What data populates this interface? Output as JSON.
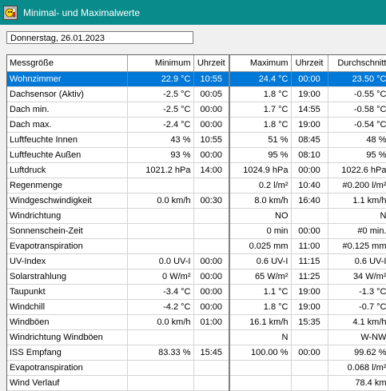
{
  "window": {
    "title": "Minimal- und Maximalwerte",
    "icon": "sun-thermometer-icon"
  },
  "date_field": {
    "value": "Donnerstag, 26.01.2023"
  },
  "table": {
    "headers": [
      "Messgröße",
      "Minimum",
      "Uhrzeit",
      "Maximum",
      "Uhrzeit",
      "Durchschnitt"
    ],
    "selected_row": 0,
    "rows": [
      [
        "Wohnzimmer",
        "22.9 °C",
        "10:55",
        "24.4 °C",
        "00:00",
        "23.50 °C"
      ],
      [
        "Dachsensor (Aktiv)",
        "-2.5 °C",
        "00:05",
        "1.8 °C",
        "19:00",
        "-0.55 °C"
      ],
      [
        "Dach min.",
        "-2.5 °C",
        "00:00",
        "1.7 °C",
        "14:55",
        "-0.58 °C"
      ],
      [
        "Dach max.",
        "-2.4 °C",
        "00:00",
        "1.8 °C",
        "19:00",
        "-0.54 °C"
      ],
      [
        "Luftfeuchte Innen",
        "43 %",
        "10:55",
        "51 %",
        "08:45",
        "48 %"
      ],
      [
        "Luftfeuchte Außen",
        "93 %",
        "00:00",
        "95 %",
        "08:10",
        "95 %"
      ],
      [
        "Luftdruck",
        "1021.2 hPa",
        "14:00",
        "1024.9 hPa",
        "00:00",
        "1022.6 hPa"
      ],
      [
        "Regenmenge",
        "",
        "",
        "0.2 l/m²",
        "10:40",
        "#0.200 l/m²"
      ],
      [
        "Windgeschwindigkeit",
        "0.0 km/h",
        "00:30",
        "8.0 km/h",
        "16:40",
        "1.1 km/h"
      ],
      [
        "Windrichtung",
        "",
        "",
        "NO",
        "",
        "N"
      ],
      [
        "Sonnenschein-Zeit",
        "",
        "",
        "0 min",
        "00:00",
        "#0 min."
      ],
      [
        "Evapotranspiration",
        "",
        "",
        "0.025 mm",
        "11:00",
        "#0.125 mm"
      ],
      [
        "UV-Index",
        "0.0 UV-I",
        "00:00",
        "0.6 UV-I",
        "11:15",
        "0.6 UV-I"
      ],
      [
        "Solarstrahlung",
        "0 W/m²",
        "00:00",
        "65 W/m²",
        "11:25",
        "34 W/m²"
      ],
      [
        "Taupunkt",
        "-3.4 °C",
        "00:00",
        "1.1 °C",
        "19:00",
        "-1.3 °C"
      ],
      [
        "Windchill",
        "-4.2 °C",
        "00:00",
        "1.8 °C",
        "19:00",
        "-0.7 °C"
      ],
      [
        "Windböen",
        "0.0 km/h",
        "01:00",
        "16.1 km/h",
        "15:35",
        "4.1 km/h"
      ],
      [
        "Windrichtung Windböen",
        "",
        "",
        "N",
        "",
        "W-NW"
      ],
      [
        "ISS Empfang",
        "83.33 %",
        "15:45",
        "100.00 %",
        "00:00",
        "99.62 %"
      ],
      [
        "Evapotranspiration",
        "",
        "",
        "",
        "",
        "0.068 l/m²"
      ],
      [
        "Wind Verlauf",
        "",
        "",
        "",
        "",
        "78.4 km"
      ]
    ]
  },
  "colors": {
    "titlebar": "#0a8b8b",
    "selection": "#0078d7"
  }
}
